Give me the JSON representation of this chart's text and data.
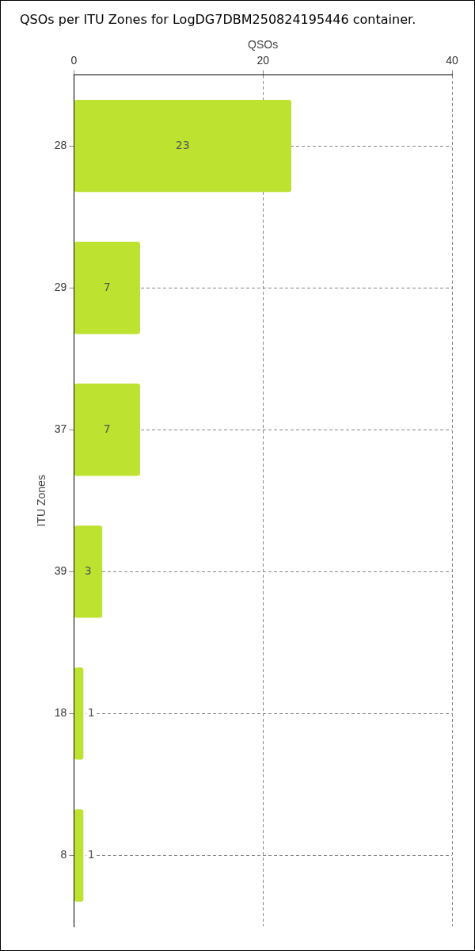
{
  "chart_data": {
    "type": "bar",
    "orientation": "horizontal",
    "title": "QSOs per ITU Zones for LogDG7DBM250824195446 container.",
    "xlabel": "QSOs",
    "ylabel": "ITU Zones",
    "categories": [
      "28",
      "29",
      "37",
      "39",
      "18",
      "8"
    ],
    "values": [
      23,
      7,
      7,
      3,
      1,
      1
    ],
    "color": "#bde22f",
    "xlim": [
      0,
      40
    ],
    "xticks": [
      0,
      20,
      40
    ],
    "grid": true,
    "data_labels": true
  }
}
